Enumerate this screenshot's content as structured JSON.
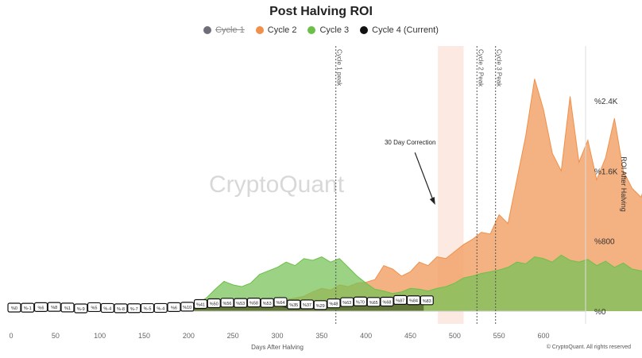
{
  "chart_data": {
    "type": "area",
    "title": "Post Halving ROI",
    "xlabel": "Days After Halving",
    "ylabel": "ROI After Halving",
    "xlim": [
      0,
      640
    ],
    "ylim": [
      0,
      3000
    ],
    "x_ticks": [
      "0",
      "50",
      "100",
      "150",
      "200",
      "250",
      "300",
      "350",
      "400",
      "450",
      "500",
      "550",
      "600"
    ],
    "x_tick_values": [
      0,
      50,
      100,
      150,
      200,
      250,
      300,
      350,
      400,
      450,
      500,
      550,
      600
    ],
    "y_ticks": [
      "%0",
      "%800",
      "%1.6K",
      "%2.4K"
    ],
    "y_tick_values": [
      0,
      800,
      1600,
      2400
    ],
    "legend": [
      {
        "name": "Cycle 1",
        "color": "#6e6e7a",
        "hidden": true
      },
      {
        "name": "Cycle 2",
        "color": "#f0904a"
      },
      {
        "name": "Cycle 3",
        "color": "#6cc04a"
      },
      {
        "name": "Cycle 4 (Current)",
        "color": "#111111"
      }
    ],
    "series": [
      {
        "name": "Cycle 2",
        "color": "#f0904a",
        "x_step": 10,
        "values": [
          0,
          5,
          -10,
          10,
          5,
          -5,
          0,
          10,
          20,
          15,
          10,
          5,
          10,
          20,
          25,
          30,
          25,
          20,
          30,
          35,
          40,
          45,
          50,
          40,
          55,
          70,
          60,
          80,
          90,
          100,
          110,
          130,
          150,
          170,
          220,
          260,
          240,
          300,
          280,
          320,
          330,
          360,
          520,
          480,
          400,
          450,
          560,
          520,
          620,
          600,
          680,
          760,
          820,
          900,
          880,
          1100,
          1000,
          1500,
          2000,
          2650,
          2300,
          1800,
          1600,
          2450,
          1700,
          1950,
          1500,
          1750,
          2200,
          1600,
          1400,
          1300,
          1600,
          1250,
          1450,
          1100,
          950,
          1050,
          900,
          1100,
          1200
        ]
      },
      {
        "name": "Cycle 3",
        "color": "#6cc04a",
        "x_step": 10,
        "values": [
          0,
          -10,
          5,
          10,
          0,
          -5,
          10,
          5,
          0,
          10,
          15,
          20,
          10,
          20,
          15,
          25,
          30,
          20,
          30,
          50,
          60,
          90,
          150,
          250,
          340,
          300,
          280,
          320,
          420,
          460,
          500,
          560,
          520,
          600,
          580,
          620,
          560,
          600,
          500,
          400,
          320,
          250,
          230,
          200,
          220,
          260,
          250,
          230,
          260,
          280,
          320,
          380,
          400,
          430,
          450,
          470,
          500,
          560,
          540,
          620,
          600,
          560,
          640,
          580,
          560,
          590,
          520,
          570,
          500,
          550,
          480,
          460,
          430,
          470,
          420,
          400,
          380,
          420,
          400,
          380,
          400
        ]
      },
      {
        "name": "Cycle 4 (Current)",
        "color": "#111111",
        "x_step": 15,
        "values": [
          0,
          -1,
          6,
          8,
          1,
          -9,
          5,
          -4,
          -8,
          -7,
          -5,
          -4,
          6,
          10,
          41,
          50,
          56,
          53,
          58,
          53,
          64,
          35,
          37,
          29,
          48,
          63,
          70,
          65,
          68,
          87,
          84,
          83
        ]
      }
    ],
    "data_labels": [
      "%0",
      "%-1",
      "%6",
      "%8",
      "%1",
      "%-9",
      "%5",
      "%-4",
      "%-8",
      "%-7",
      "%-5",
      "%-4",
      "%6",
      "%10",
      "%41",
      "%50",
      "%56",
      "%53",
      "%58",
      "%53",
      "%64",
      "%35",
      "%37",
      "%29",
      "%48",
      "%63",
      "%70",
      "%65",
      "%68",
      "%87",
      "%84",
      "%83"
    ],
    "annotations": [
      {
        "text": "Cycle 1 peak",
        "x": 366
      },
      {
        "text": "Cycle 2 Peak",
        "x": 525
      },
      {
        "text": "Cycle 3 Peak",
        "x": 546
      },
      {
        "text": "30 Day Correction",
        "x": 482,
        "y": 1900,
        "arrow_to": [
          478,
          1250
        ]
      }
    ],
    "shaded_region": {
      "label": "30 Day Correction",
      "x": [
        481,
        510
      ]
    },
    "watermark": "CryptoQuant"
  },
  "credit": "© CryptoQuant. All rights reserved"
}
